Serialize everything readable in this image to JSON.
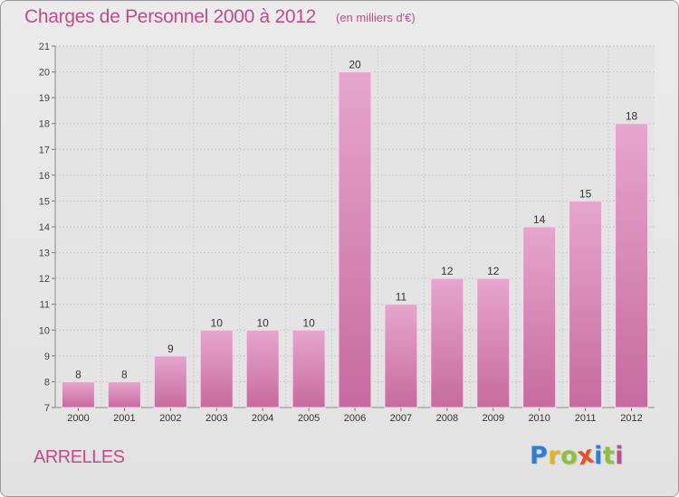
{
  "chart_data": {
    "type": "bar",
    "title": "Charges de Personnel 2000 à 2012",
    "subtitle": "(en milliers d'€)",
    "categories": [
      "2000",
      "2001",
      "2002",
      "2003",
      "2004",
      "2005",
      "2006",
      "2007",
      "2008",
      "2009",
      "2010",
      "2011",
      "2012"
    ],
    "values": [
      8,
      8,
      9,
      10,
      10,
      10,
      20,
      11,
      12,
      12,
      14,
      15,
      18
    ],
    "ylim": [
      7,
      21
    ],
    "yticks": [
      7,
      8,
      9,
      10,
      11,
      12,
      13,
      14,
      15,
      16,
      17,
      18,
      19,
      20,
      21
    ],
    "grid": true,
    "bar_color": "#c76a9f",
    "bar_color_light": "#e6a6cd"
  },
  "footer": {
    "commune": "ARRELLES",
    "logo_text": "Proxiti"
  },
  "colors": {
    "accent": "#c04c8a"
  }
}
